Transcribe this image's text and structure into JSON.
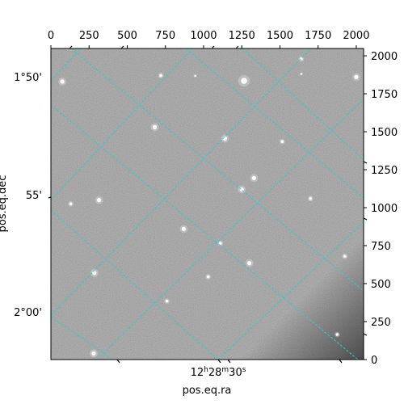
{
  "chart_data": {
    "type": "heatmap",
    "title": "",
    "colormap": "gray",
    "pixel_axes": {
      "xlim": [
        0,
        2048
      ],
      "ylim": [
        0,
        2048
      ],
      "x_ticks": [
        0,
        250,
        500,
        750,
        1000,
        1250,
        1500,
        1750,
        2000
      ],
      "y_ticks": [
        0,
        250,
        500,
        750,
        1000,
        1250,
        1500,
        1750,
        2000
      ]
    },
    "world_axes": {
      "xlabel": "pos.eq.ra",
      "ylabel": "pos.eq.dec",
      "ra_tick_labels": [
        {
          "h": "12",
          "m": "28",
          "s": "30",
          "value": "12h28m30s"
        }
      ],
      "dec_tick_labels": [
        "1°50'",
        "55'",
        "2°00'"
      ]
    },
    "grid": true,
    "grid_color": "#33cccc",
    "stars": [
      {
        "x": 75,
        "y": 1830,
        "brightness": "medium"
      },
      {
        "x": 720,
        "y": 1870,
        "brightness": "small"
      },
      {
        "x": 945,
        "y": 1868,
        "brightness": "tiny"
      },
      {
        "x": 1265,
        "y": 1835,
        "brightness": "large"
      },
      {
        "x": 680,
        "y": 1530,
        "brightness": "medium"
      },
      {
        "x": 1140,
        "y": 1455,
        "brightness": "medium"
      },
      {
        "x": 1515,
        "y": 1435,
        "brightness": "small"
      },
      {
        "x": 1330,
        "y": 1195,
        "brightness": "medium"
      },
      {
        "x": 1250,
        "y": 1120,
        "brightness": "medium"
      },
      {
        "x": 315,
        "y": 1050,
        "brightness": "medium"
      },
      {
        "x": 130,
        "y": 1025,
        "brightness": "small"
      },
      {
        "x": 870,
        "y": 860,
        "brightness": "medium"
      },
      {
        "x": 1110,
        "y": 765,
        "brightness": "small"
      },
      {
        "x": 1300,
        "y": 635,
        "brightness": "medium"
      },
      {
        "x": 285,
        "y": 570,
        "brightness": "medium"
      },
      {
        "x": 1030,
        "y": 545,
        "brightness": "small"
      },
      {
        "x": 760,
        "y": 385,
        "brightness": "small"
      },
      {
        "x": 1700,
        "y": 1060,
        "brightness": "small"
      },
      {
        "x": 1925,
        "y": 680,
        "brightness": "small"
      },
      {
        "x": 1875,
        "y": 165,
        "brightness": "small"
      },
      {
        "x": 280,
        "y": 40,
        "brightness": "medium"
      },
      {
        "x": 2000,
        "y": 1860,
        "brightness": "medium"
      },
      {
        "x": 1640,
        "y": 1880,
        "brightness": "tiny"
      },
      {
        "x": 1640,
        "y": 1980,
        "brightness": "small"
      }
    ]
  }
}
